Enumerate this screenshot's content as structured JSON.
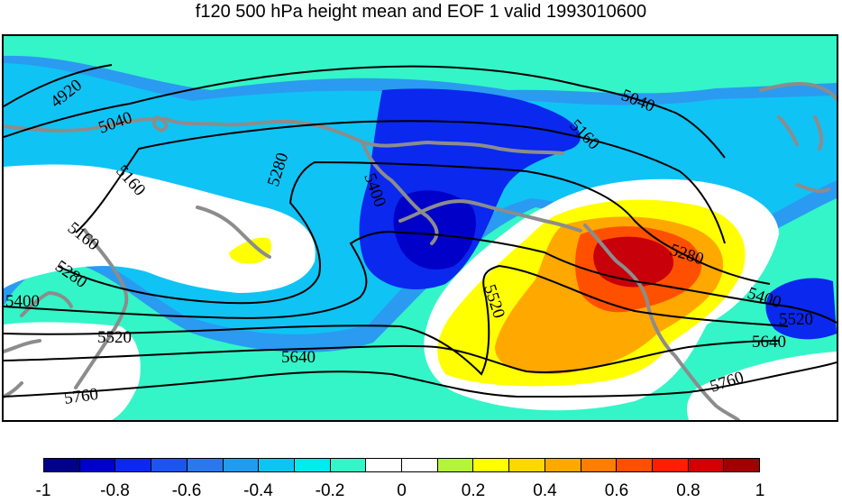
{
  "title": "f120 500 hPa height mean and EOF 1 valid 1993010600",
  "map": {
    "contour_labels": [
      "4920",
      "5040",
      "5040",
      "5160",
      "5160",
      "5160",
      "5280",
      "5280",
      "5280",
      "5400",
      "5400",
      "5400",
      "5520",
      "5520",
      "5520",
      "5640",
      "5640",
      "5760",
      "5760"
    ],
    "colors": {
      "coastline": "#8c8c8c",
      "contour": "#000000"
    }
  },
  "colorbar": {
    "colors": [
      "#00008c",
      "#0000c8",
      "#0a28ee",
      "#1c55ee",
      "#2a78ee",
      "#1f9cf0",
      "#10c3f5",
      "#00ebf0",
      "#33f5c8",
      "#ffffff",
      "#ffffff",
      "#b4f53a",
      "#ffff00",
      "#ffd700",
      "#ffa800",
      "#ff7d00",
      "#ff5000",
      "#ff1e00",
      "#d20000",
      "#a00000"
    ],
    "tick_labels": [
      "-1",
      "-0.8",
      "-0.6",
      "-0.4",
      "-0.2",
      "0",
      "0.2",
      "0.4",
      "0.6",
      "0.8",
      "1"
    ]
  }
}
